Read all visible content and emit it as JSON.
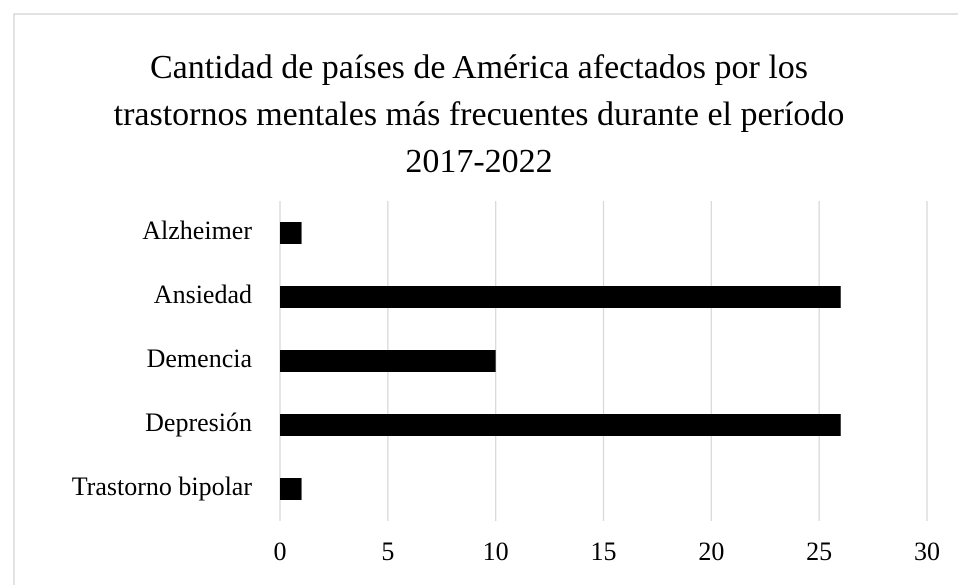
{
  "chart_data": {
    "type": "bar",
    "orientation": "horizontal",
    "title": "Cantidad de países de América afectados por los trastornos mentales más frecuentes durante el período 2017-2022",
    "categories": [
      "Alzheimer",
      "Ansiedad",
      "Demencia",
      "Depresión",
      "Trastorno bipolar"
    ],
    "values": [
      1,
      26,
      10,
      26,
      1
    ],
    "color": "#000000",
    "xlim": [
      0,
      30
    ],
    "xticks": [
      0,
      5,
      10,
      15,
      20,
      25,
      30
    ],
    "grid": true
  }
}
